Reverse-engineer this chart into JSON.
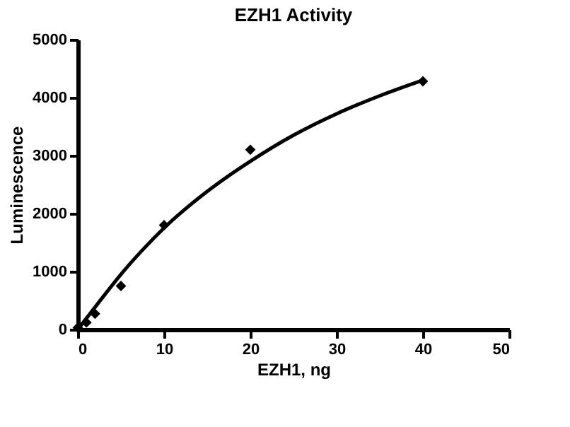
{
  "chart_data": {
    "type": "scatter",
    "title": "EZH1 Activity",
    "xlabel": "EZH1, ng",
    "ylabel": "Luminescence",
    "xlim": [
      0,
      50
    ],
    "xticks": [
      0,
      10,
      20,
      30,
      40,
      50
    ],
    "ylim": [
      0,
      5000
    ],
    "yticks": [
      0,
      1000,
      2000,
      3000,
      4000,
      5000
    ],
    "marker": "diamond",
    "series": [
      {
        "color": "#000000",
        "x": [
          0,
          1,
          2,
          5,
          10,
          20,
          40
        ],
        "values": [
          30,
          120,
          270,
          750,
          1800,
          3100,
          4280
        ]
      },
      {
        "type": "line",
        "color": "#000000",
        "marker": "none",
        "line_style": "solid",
        "x": [
          0,
          2.5,
          5,
          7.5,
          10,
          15,
          20,
          25,
          30,
          35,
          40
        ],
        "values": [
          0,
          480,
          950,
          1370,
          1750,
          2380,
          2900,
          3350,
          3720,
          4030,
          4300
        ]
      }
    ]
  }
}
